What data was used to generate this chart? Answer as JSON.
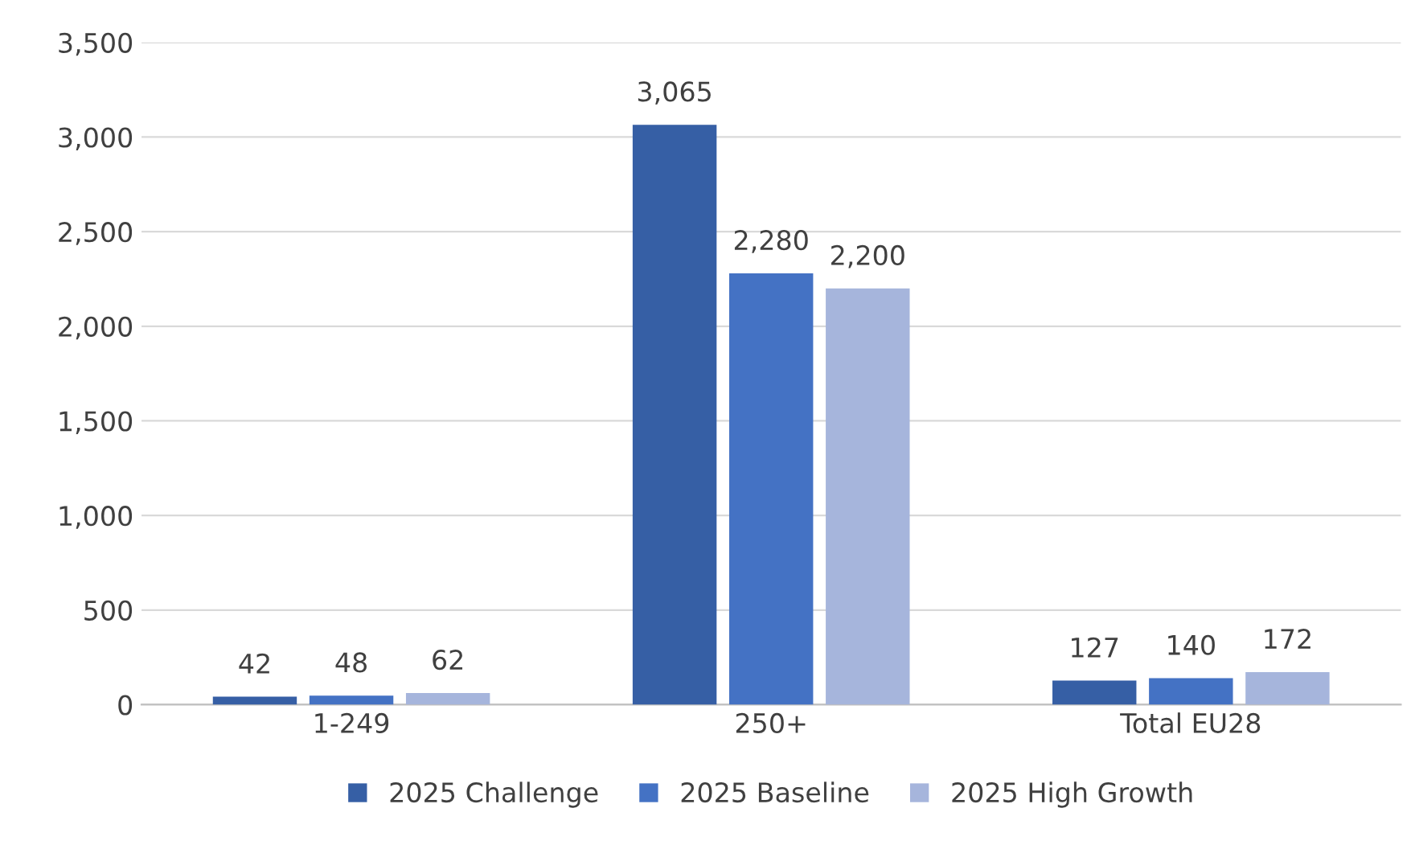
{
  "chart_data": {
    "type": "bar",
    "categories": [
      "1-249",
      "250+",
      "Total EU28"
    ],
    "series": [
      {
        "name": "2025 Challenge",
        "color": "#365fa5",
        "values": [
          42,
          3065,
          127
        ],
        "value_labels": [
          "42",
          "3,065",
          "127"
        ]
      },
      {
        "name": "2025 Baseline",
        "color": "#4472c4",
        "values": [
          48,
          2280,
          140
        ],
        "value_labels": [
          "48",
          "2,280",
          "140"
        ]
      },
      {
        "name": "2025 High Growth",
        "color": "#a6b5dc",
        "values": [
          62,
          2200,
          172
        ],
        "value_labels": [
          "62",
          "2,200",
          "172"
        ]
      }
    ],
    "ylim": [
      0,
      3500
    ],
    "yticks": [
      0,
      {
        "value": 500,
        "label": "500"
      },
      {
        "value": 1000,
        "label": "1,000"
      },
      {
        "value": 1500,
        "label": "1,500"
      },
      {
        "value": 2000,
        "label": "2,000"
      },
      {
        "value": 2500,
        "label": "2,500"
      },
      {
        "value": 3000,
        "label": "3,000"
      },
      {
        "value": 3500,
        "label": "3,500"
      }
    ],
    "grid": "y",
    "legend": "bottom"
  }
}
